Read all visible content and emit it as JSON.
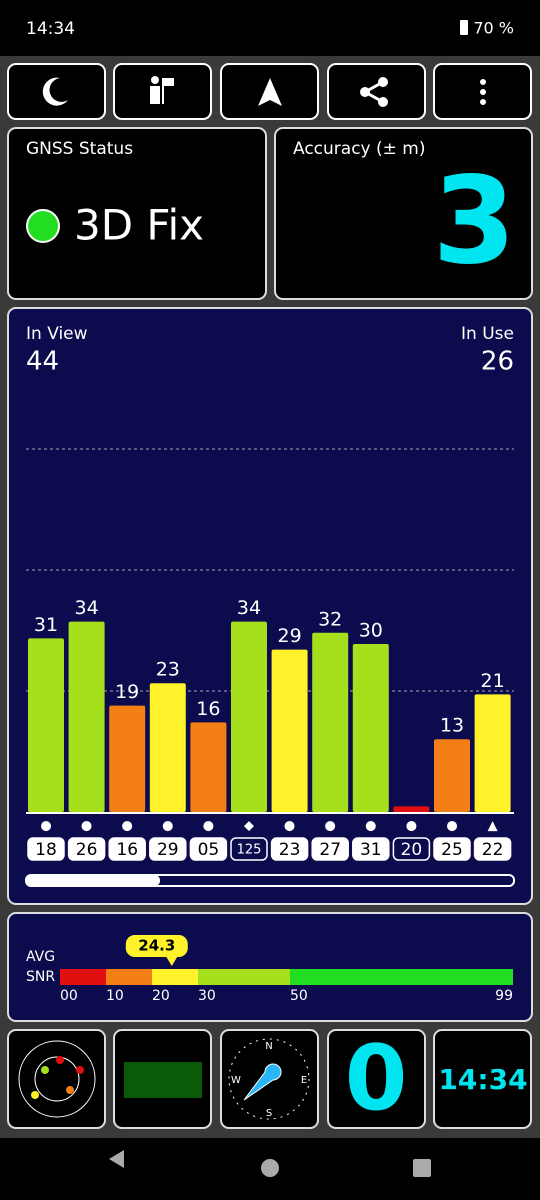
{
  "status_bar": {
    "time": "14:34",
    "battery": "70 %"
  },
  "gnss_status": {
    "title": "GNSS Status",
    "fix": "3D Fix"
  },
  "accuracy": {
    "title": "Accuracy (± m)",
    "value": "3"
  },
  "sky": {
    "in_view_label": "In View",
    "in_view": "44",
    "in_use_label": "In Use",
    "in_use": "26",
    "ylim": [
      0,
      60
    ],
    "values": [
      31,
      34,
      19,
      23,
      16,
      34,
      29,
      32,
      30,
      1,
      13,
      21
    ],
    "value_labels": [
      "31",
      "34",
      "19",
      "23",
      "16",
      "34",
      "29",
      "32",
      "30",
      null,
      "13",
      "21"
    ],
    "colors": [
      "#a6e01c",
      "#a6e01c",
      "#f57f17",
      "#fff12a",
      "#f57f17",
      "#a6e01c",
      "#fff12a",
      "#a6e01c",
      "#a6e01c",
      "#e01010",
      "#f57f17",
      "#fff12a"
    ],
    "markers": [
      "●",
      "●",
      "●",
      "●",
      "●",
      "◆",
      "●",
      "●",
      "●",
      "●",
      "●",
      "▲"
    ],
    "ids": [
      "18",
      "26",
      "16",
      "29",
      "05",
      "125",
      "23",
      "27",
      "31",
      "20",
      "25",
      "22"
    ],
    "used": [
      true,
      true,
      true,
      true,
      true,
      false,
      true,
      true,
      true,
      false,
      true,
      true
    ]
  },
  "snr": {
    "label_avg": "AVG",
    "label_snr": "SNR",
    "avg": 24.3,
    "ticks": [
      {
        "value": 0,
        "label": "00"
      },
      10,
      20,
      30,
      50,
      99
    ],
    "colors": [
      "#e01010",
      "#f57f17",
      "#fff12a",
      "#a6e01c",
      "#22dd22"
    ]
  },
  "bottom": {
    "compass": [
      "N",
      "E",
      "S",
      "W"
    ],
    "count": "0",
    "time": "14:34"
  }
}
